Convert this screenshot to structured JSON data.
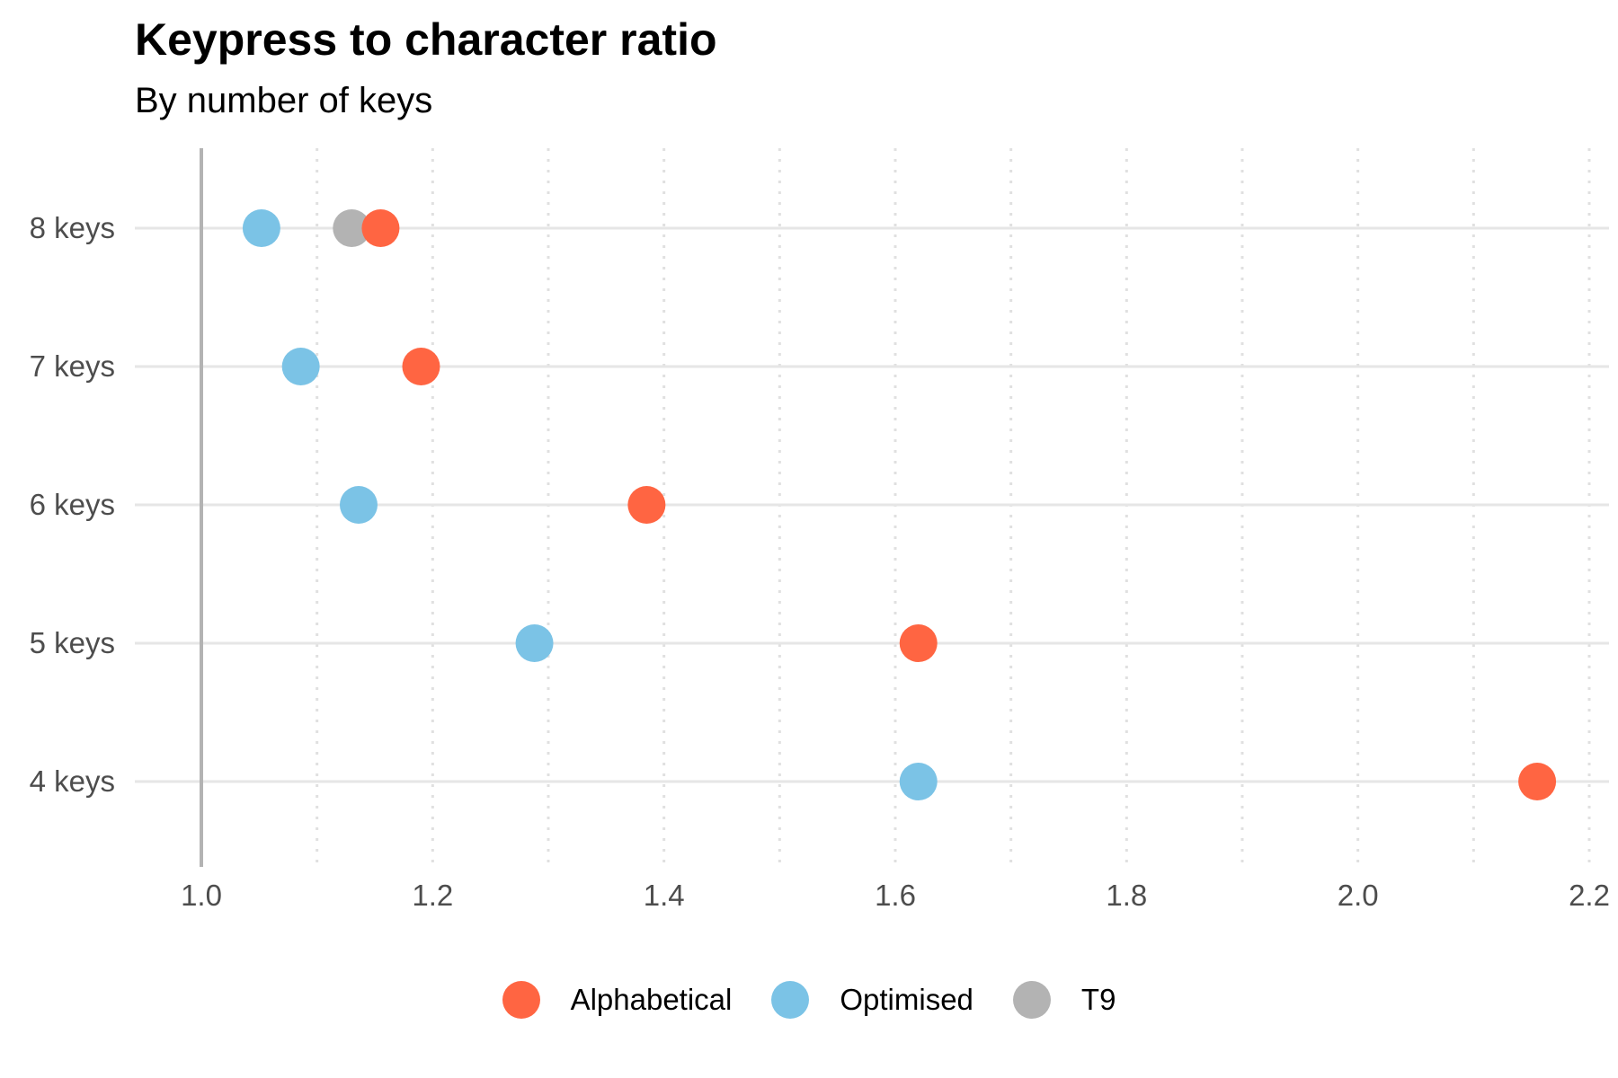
{
  "chart_data": {
    "type": "scatter",
    "title": "Keypress to character ratio",
    "subtitle": "By number of keys",
    "xlabel": "",
    "ylabel": "",
    "categories": [
      "4 keys",
      "5 keys",
      "6 keys",
      "7 keys",
      "8 keys"
    ],
    "xlim": [
      0.95,
      2.22
    ],
    "xticks": [
      "1.0",
      "1.2",
      "1.4",
      "1.6",
      "1.8",
      "2.0",
      "2.2"
    ],
    "grid": "on",
    "legend_position": "bottom",
    "series": [
      {
        "name": "Alphabetical",
        "color": "#ff6542",
        "points": [
          {
            "category": "8 keys",
            "x": 1.155
          },
          {
            "category": "7 keys",
            "x": 1.19
          },
          {
            "category": "6 keys",
            "x": 1.385
          },
          {
            "category": "5 keys",
            "x": 1.62
          },
          {
            "category": "4 keys",
            "x": 2.155
          }
        ]
      },
      {
        "name": "Optimised",
        "color": "#7bc3e6",
        "points": [
          {
            "category": "8 keys",
            "x": 1.052
          },
          {
            "category": "7 keys",
            "x": 1.086
          },
          {
            "category": "6 keys",
            "x": 1.136
          },
          {
            "category": "5 keys",
            "x": 1.288
          },
          {
            "category": "4 keys",
            "x": 1.62
          }
        ]
      },
      {
        "name": "T9",
        "color": "#b3b3b3",
        "points": [
          {
            "category": "8 keys",
            "x": 1.13
          }
        ]
      }
    ]
  }
}
